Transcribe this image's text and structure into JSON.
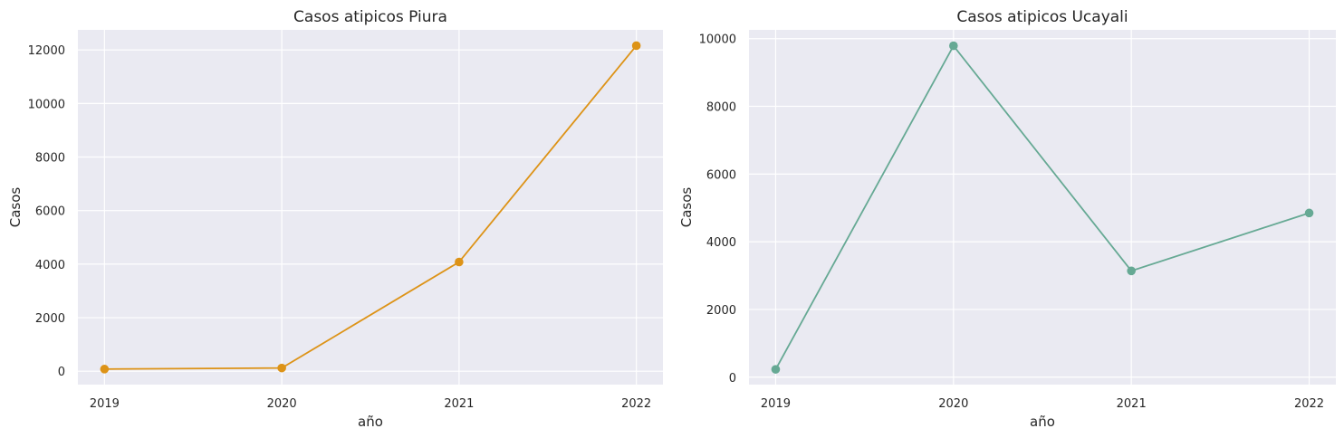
{
  "chart_data": [
    {
      "type": "line",
      "title": "Casos atipicos Piura",
      "xlabel": "año",
      "ylabel": "Casos",
      "categories": [
        "2019",
        "2020",
        "2021",
        "2022"
      ],
      "x": [
        2019,
        2020,
        2021,
        2022
      ],
      "series": [
        {
          "values": [
            80,
            120,
            4080,
            12160
          ],
          "color": "#dd9317"
        }
      ],
      "ylim": [
        -500,
        12750
      ],
      "yticks": [
        0,
        2000,
        4000,
        6000,
        8000,
        10000,
        12000
      ],
      "grid": true
    },
    {
      "type": "line",
      "title": "Casos atipicos Ucayali",
      "xlabel": "año",
      "ylabel": "Casos",
      "categories": [
        "2019",
        "2020",
        "2021",
        "2022"
      ],
      "x": [
        2019,
        2020,
        2021,
        2022
      ],
      "series": [
        {
          "values": [
            230,
            9790,
            3140,
            4850
          ],
          "color": "#66a994"
        }
      ],
      "ylim": [
        -220,
        10260
      ],
      "yticks": [
        0,
        2000,
        4000,
        6000,
        8000,
        10000
      ],
      "grid": true
    }
  ],
  "style": {
    "background": "#eaeaf2",
    "grid_color": "#ffffff",
    "text_color": "#262626"
  }
}
